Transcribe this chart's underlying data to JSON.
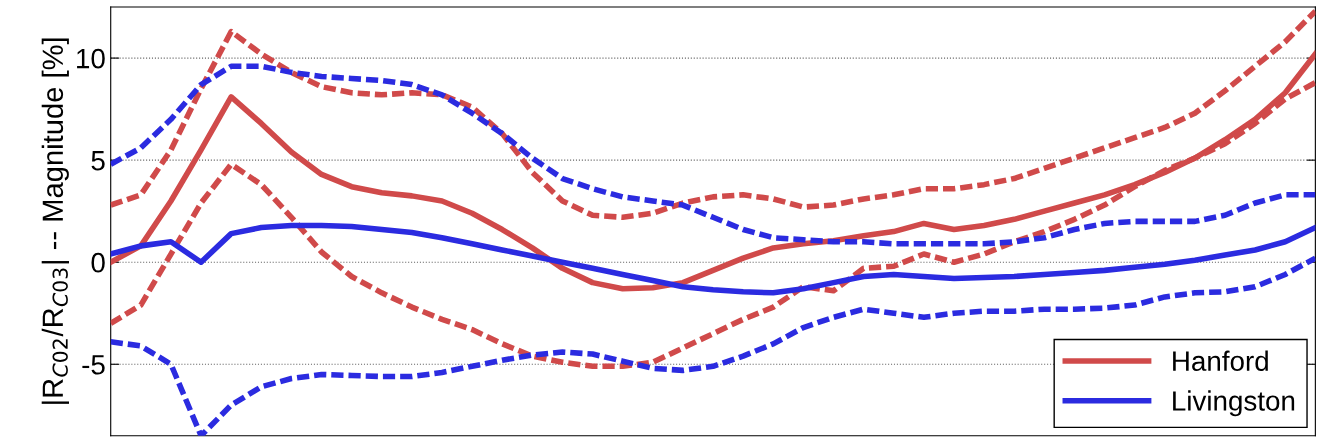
{
  "chart_data": {
    "type": "line",
    "ylabel": "|R$_{C02}$/R$_{C03}$| -- Magnitude [%]",
    "grid": "y",
    "legend": "bottom right",
    "marker": "none",
    "categories": [
      null,
      null,
      null,
      null,
      null,
      null,
      null,
      null,
      null,
      null,
      null,
      null,
      null,
      null,
      null,
      null,
      null,
      null,
      null,
      null,
      null,
      null,
      null,
      null,
      null,
      null,
      null,
      null,
      null,
      null,
      null,
      null,
      null,
      null,
      null,
      null,
      null,
      null,
      null,
      null,
      null
    ],
    "ylim": [
      -8.5,
      12.5
    ],
    "yticks": [
      -5,
      0,
      5,
      10
    ],
    "series": [
      {
        "name": "Hanford",
        "color": "#d04a4a",
        "line_style": "solid",
        "values": [
          0.0,
          0.8,
          3.0,
          5.5,
          8.1,
          6.8,
          5.4,
          4.3,
          3.7,
          3.4,
          3.25,
          3.0,
          2.4,
          1.6,
          0.7,
          -0.3,
          -1.0,
          -1.3,
          -1.25,
          -1.0,
          -0.4,
          0.2,
          0.7,
          0.9,
          1.05,
          1.3,
          1.5,
          1.9,
          1.6,
          1.8,
          2.1,
          2.5,
          2.9,
          3.3,
          3.8,
          4.4,
          5.1,
          6.0,
          7.0,
          8.3,
          10.2
        ]
      },
      {
        "color": "#d04a4a",
        "line_style": "dashed",
        "values": [
          2.8,
          3.3,
          5.5,
          8.5,
          11.3,
          10.2,
          9.3,
          8.6,
          8.3,
          8.2,
          8.3,
          8.2,
          7.6,
          6.3,
          4.4,
          3.0,
          2.3,
          2.2,
          2.4,
          2.9,
          3.2,
          3.3,
          3.1,
          2.7,
          2.8,
          3.1,
          3.3,
          3.6,
          3.6,
          3.8,
          4.1,
          4.6,
          5.1,
          5.6,
          6.1,
          6.6,
          7.3,
          8.4,
          9.6,
          10.8,
          12.3
        ]
      },
      {
        "color": "#d04a4a",
        "line_style": "dashed",
        "values": [
          -3.0,
          -2.1,
          0.4,
          2.9,
          4.8,
          3.8,
          2.2,
          0.5,
          -0.7,
          -1.5,
          -2.2,
          -2.8,
          -3.3,
          -4.0,
          -4.6,
          -4.9,
          -5.1,
          -5.1,
          -4.9,
          -4.2,
          -3.5,
          -2.8,
          -2.2,
          -1.2,
          -1.4,
          -0.3,
          -0.2,
          0.4,
          0.0,
          0.4,
          1.0,
          1.5,
          2.1,
          2.8,
          3.7,
          4.5,
          5.1,
          5.8,
          6.8,
          8.0,
          8.8
        ]
      },
      {
        "name": "Livingston",
        "color": "#2b2be0",
        "line_style": "solid",
        "values": [
          0.4,
          0.8,
          1.0,
          0.0,
          1.4,
          1.7,
          1.8,
          1.8,
          1.75,
          1.6,
          1.45,
          1.2,
          0.9,
          0.6,
          0.3,
          0.0,
          -0.3,
          -0.6,
          -0.9,
          -1.2,
          -1.35,
          -1.45,
          -1.5,
          -1.3,
          -1.0,
          -0.7,
          -0.6,
          -0.7,
          -0.8,
          -0.75,
          -0.7,
          -0.6,
          -0.5,
          -0.4,
          -0.25,
          -0.1,
          0.1,
          0.35,
          0.6,
          1.0,
          1.7
        ]
      },
      {
        "color": "#2b2be0",
        "line_style": "dashed",
        "values": [
          4.8,
          5.6,
          7.0,
          8.7,
          9.6,
          9.6,
          9.3,
          9.1,
          9.0,
          8.9,
          8.7,
          8.2,
          7.3,
          6.3,
          5.1,
          4.1,
          3.6,
          3.2,
          3.0,
          2.8,
          2.2,
          1.6,
          1.2,
          1.1,
          1.0,
          1.0,
          0.9,
          0.9,
          0.9,
          0.9,
          1.0,
          1.2,
          1.6,
          1.9,
          2.0,
          2.0,
          2.0,
          2.3,
          2.9,
          3.3,
          3.3
        ]
      },
      {
        "color": "#2b2be0",
        "line_style": "dashed",
        "values": [
          -3.9,
          -4.1,
          -5.0,
          -8.5,
          -7.0,
          -6.1,
          -5.7,
          -5.5,
          -5.55,
          -5.6,
          -5.6,
          -5.4,
          -5.1,
          -4.8,
          -4.55,
          -4.4,
          -4.5,
          -4.85,
          -5.2,
          -5.3,
          -5.1,
          -4.6,
          -4.0,
          -3.2,
          -2.7,
          -2.3,
          -2.5,
          -2.7,
          -2.5,
          -2.4,
          -2.4,
          -2.3,
          -2.3,
          -2.25,
          -2.1,
          -1.7,
          -1.5,
          -1.45,
          -1.2,
          -0.6,
          0.2
        ]
      }
    ]
  }
}
